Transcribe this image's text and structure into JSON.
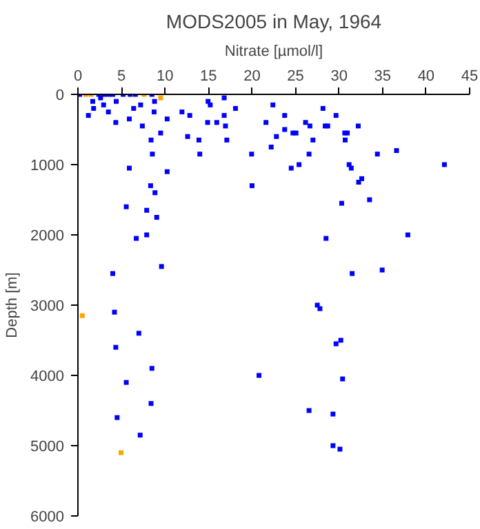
{
  "chart_data": {
    "type": "scatter",
    "title": "MODS2005 in May, 1964",
    "xlabel": "Nitrate [µmol/l]",
    "ylabel": "Depth [m]",
    "xlim": [
      0,
      45
    ],
    "xticks": [
      0,
      5,
      10,
      15,
      20,
      25,
      30,
      35,
      40,
      45
    ],
    "ylim": [
      6000,
      0
    ],
    "yticks": [
      0,
      1000,
      2000,
      3000,
      4000,
      5000,
      6000
    ],
    "grid": false,
    "marker": "square",
    "series": [
      {
        "color": "#0000ff",
        "x": [
          0.2,
          2.4,
          3.0,
          3.5,
          4.0,
          5.2,
          6.0,
          6.6,
          8.5,
          1.7,
          2.6,
          4.4,
          1.2,
          1.8,
          2.95,
          3.5,
          4.35,
          5.9,
          6.4,
          7.2,
          7.4,
          8.4,
          8.55,
          8.75,
          8.8,
          9.5,
          10.25,
          5.9,
          10.25,
          8.35,
          8.85,
          5.55,
          7.9,
          9.05,
          11.95,
          12.85,
          12.6,
          13.9,
          14.0,
          14.95,
          15.2,
          14.9,
          15.95,
          16.8,
          16.8,
          16.95,
          17.1,
          18.1,
          19.95,
          20.0,
          21.6,
          22.4,
          22.2,
          22.8,
          23.75,
          23.75,
          24.7,
          25.05,
          24.5,
          25.4,
          26.15,
          26.65,
          26.55,
          27.0,
          28.15,
          28.4,
          28.7,
          29.65,
          30.65,
          30.95,
          30.7,
          32.2,
          31.15,
          31.4,
          32.25,
          32.6,
          30.3,
          33.5,
          34.4,
          36.6,
          42.1,
          6.7,
          7.9,
          9.6,
          4.0,
          28.5,
          37.9,
          31.5,
          34.95,
          4.2,
          27.5,
          27.8,
          7.0,
          4.35,
          29.65,
          30.2,
          8.5,
          5.55,
          20.8,
          30.4,
          4.5,
          8.4,
          7.15,
          26.55,
          29.3,
          29.3,
          30.1
        ],
        "values": [
          0,
          0,
          0,
          0,
          0,
          0,
          0,
          0,
          0,
          100,
          50,
          100,
          300,
          200,
          150,
          250,
          400,
          350,
          200,
          150,
          450,
          650,
          850,
          250,
          100,
          550,
          350,
          1050,
          1100,
          1300,
          1400,
          1600,
          1650,
          1750,
          250,
          300,
          600,
          650,
          850,
          100,
          150,
          400,
          400,
          50,
          300,
          450,
          650,
          200,
          850,
          1300,
          400,
          150,
          750,
          600,
          300,
          500,
          550,
          550,
          1050,
          1000,
          400,
          450,
          850,
          650,
          200,
          450,
          450,
          300,
          550,
          550,
          650,
          450,
          1000,
          1050,
          1250,
          1200,
          1550,
          1500,
          850,
          800,
          1000,
          2050,
          2000,
          2450,
          2550,
          2050,
          2000,
          2550,
          2500,
          3100,
          3000,
          3050,
          3400,
          3600,
          3550,
          3500,
          3900,
          4100,
          4000,
          4050,
          4600,
          4400,
          4850,
          4500,
          4550,
          5000,
          5050
        ]
      },
      {
        "color": "#ffa500",
        "x": [
          0.9,
          1.5,
          7.6,
          9.5,
          0.5,
          4.95
        ],
        "values": [
          0,
          0,
          0,
          50,
          3150,
          5100
        ]
      }
    ]
  }
}
